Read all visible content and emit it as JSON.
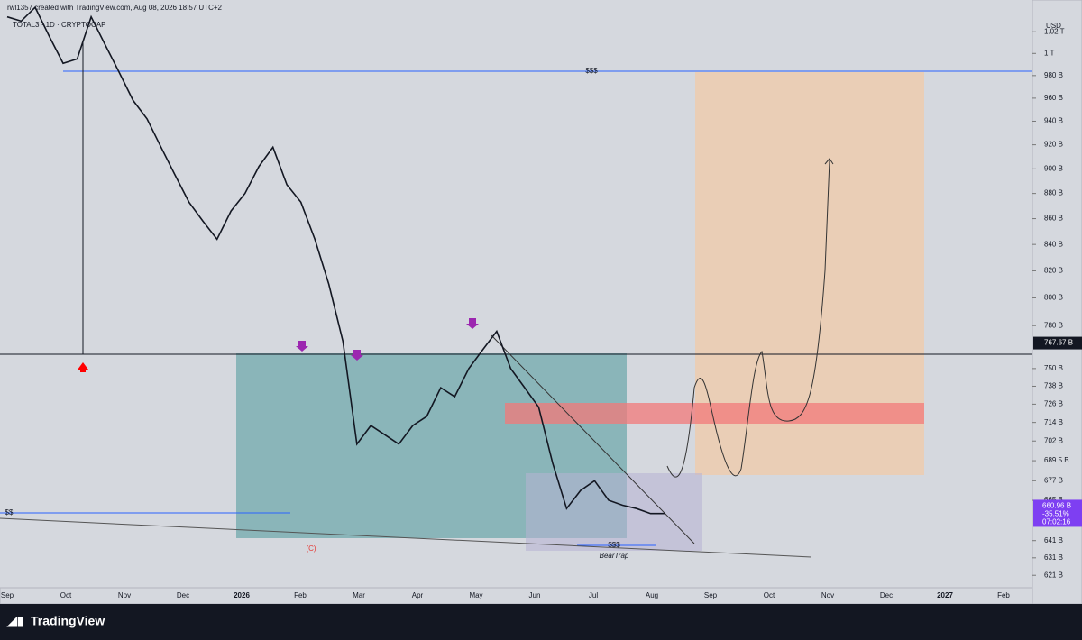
{
  "header": {
    "credit": "rwl1357 created with TradingView.com, Aug 08, 2026 18:57 UTC+2",
    "symbol": "TOTAL3 · 1D · CRYPTOCAP"
  },
  "price_axis": {
    "currency": "USD",
    "log_scale": true,
    "ylim": [
      614,
      1050
    ],
    "ticks": [
      {
        "value": 1020,
        "label": "1.02 T"
      },
      {
        "value": 1000,
        "label": "1 T"
      },
      {
        "value": 980,
        "label": "980 B"
      },
      {
        "value": 960,
        "label": "960 B"
      },
      {
        "value": 940,
        "label": "940 B"
      },
      {
        "value": 920,
        "label": "920 B"
      },
      {
        "value": 900,
        "label": "900 B"
      },
      {
        "value": 880,
        "label": "880 B"
      },
      {
        "value": 860,
        "label": "860 B"
      },
      {
        "value": 840,
        "label": "840 B"
      },
      {
        "value": 820,
        "label": "820 B"
      },
      {
        "value": 800,
        "label": "800 B"
      },
      {
        "value": 780,
        "label": "780 B"
      },
      {
        "value": 750,
        "label": "750 B"
      },
      {
        "value": 738,
        "label": "738 B"
      },
      {
        "value": 726,
        "label": "726 B"
      },
      {
        "value": 714,
        "label": "714 B"
      },
      {
        "value": 702,
        "label": "702 B"
      },
      {
        "value": 689.5,
        "label": "689.5 B"
      },
      {
        "value": 677,
        "label": "677 B"
      },
      {
        "value": 665,
        "label": "665 B"
      },
      {
        "value": 641,
        "label": "641 B"
      },
      {
        "value": 631,
        "label": "631 B"
      },
      {
        "value": 621,
        "label": "621 B"
      }
    ],
    "level_tag": {
      "value": 767.67,
      "label": "767.67 B"
    },
    "last_tag": {
      "value": 660.96,
      "label": "660.96 B",
      "change": "-35.51%",
      "countdown": "07:02:16"
    }
  },
  "time_axis": [
    "Sep",
    "Oct",
    "Nov",
    "Dec",
    "2026",
    "Feb",
    "Mar",
    "Apr",
    "May",
    "Jun",
    "Jul",
    "Aug",
    "Sep",
    "Oct",
    "Nov",
    "Dec",
    "2027",
    "Feb"
  ],
  "price": {
    "color": "#131722",
    "values": [
      1034,
      1030,
      1043,
      1016,
      991,
      995,
      1034,
      1008,
      983,
      958,
      942,
      918,
      895,
      873,
      858,
      844,
      866,
      880,
      902,
      918,
      887,
      873,
      844,
      810,
      769,
      700,
      712,
      706,
      700,
      712,
      718,
      737,
      731,
      750,
      763,
      776,
      750,
      737,
      724,
      688,
      660,
      671,
      677,
      665,
      662,
      660,
      657,
      657
    ]
  },
  "annotations": {
    "liquidity_top": "$$$",
    "liquidity_left": "$$",
    "liquidity_bottom": "$$$",
    "bear_trap": "BearTrap",
    "wave": "(C)"
  },
  "footer": {
    "brand": "TradingView"
  }
}
